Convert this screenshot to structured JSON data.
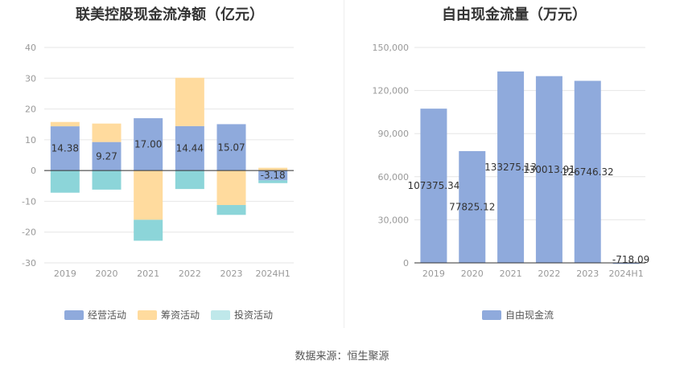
{
  "source_label": "数据来源：恒生聚源",
  "chart_data": [
    {
      "type": "bar",
      "stacked": true,
      "title": "联美控股现金流净额（亿元）",
      "categories": [
        "2019",
        "2020",
        "2021",
        "2022",
        "2023",
        "2024H1"
      ],
      "ylim": [
        -30,
        40
      ],
      "yticks": [
        -30,
        -20,
        -10,
        0,
        10,
        20,
        30,
        40
      ],
      "grid": true,
      "legend_position": "bottom",
      "series": [
        {
          "name": "经营活动",
          "color": "#8FAADC",
          "values": [
            14.38,
            9.27,
            17.0,
            14.44,
            15.07,
            -3.18
          ]
        },
        {
          "name": "筹资活动",
          "color": "#FFDB9E",
          "values": [
            1.4,
            6.0,
            -16.0,
            15.7,
            -11.2,
            0.9
          ]
        },
        {
          "name": "投资活动",
          "color": "#8CD5D9",
          "values": [
            -7.2,
            -6.2,
            -6.8,
            -6.0,
            -3.2,
            -0.9
          ]
        }
      ],
      "data_labels": [
        "14.38",
        "9.27",
        "17.00",
        "14.44",
        "15.07",
        "-3.18"
      ]
    },
    {
      "type": "bar",
      "title": "自由现金流量（万元）",
      "categories": [
        "2019",
        "2020",
        "2021",
        "2022",
        "2023",
        "2024H1"
      ],
      "ylim": [
        0,
        150000
      ],
      "yticks": [
        "0",
        "30,000",
        "60,000",
        "90,000",
        "120,000",
        "150,000"
      ],
      "ytick_values": [
        0,
        30000,
        60000,
        90000,
        120000,
        150000
      ],
      "grid": true,
      "legend_position": "bottom",
      "series": [
        {
          "name": "自由现金流",
          "color": "#8FAADC",
          "values": [
            107375.34,
            77825.12,
            133275.13,
            130013.91,
            126746.32,
            -718.09
          ]
        }
      ],
      "data_labels": [
        "107375.34",
        "77825.12",
        "133275.13",
        "130013.91",
        "126746.32",
        "-718.09"
      ]
    }
  ]
}
